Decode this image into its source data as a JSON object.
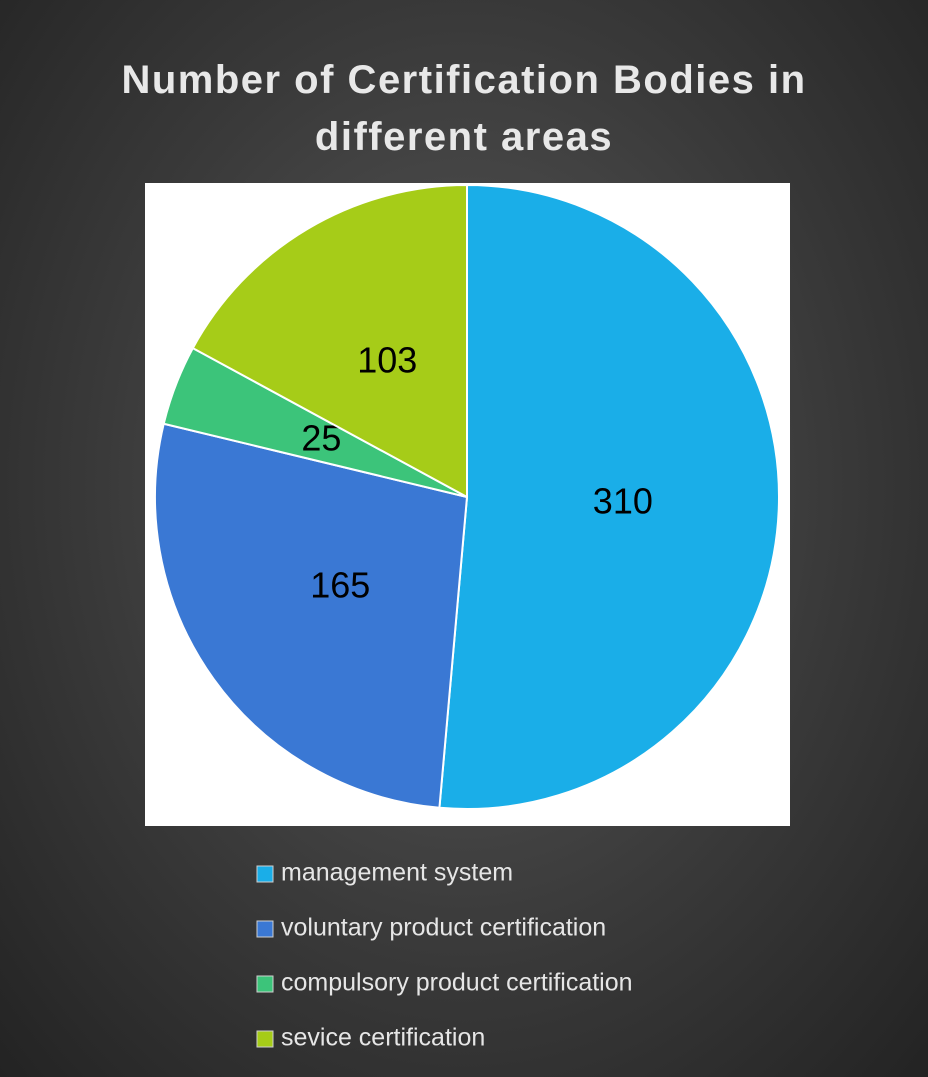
{
  "chart_data": {
    "type": "pie",
    "title": "Number of Certification Bodies in different areas",
    "categories": [
      "management system",
      "voluntary product certification",
      "compulsory product certification",
      "sevice certification"
    ],
    "values": [
      310,
      165,
      25,
      103
    ],
    "colors": [
      "#1aaee8",
      "#3a78d4",
      "#3cc47a",
      "#a6cc18"
    ],
    "legend": "bottom"
  }
}
